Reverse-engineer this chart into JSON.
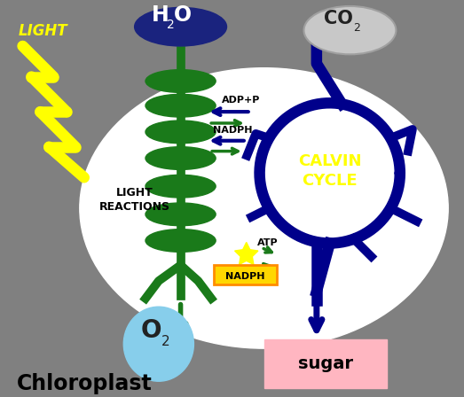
{
  "bg_color": "#808080",
  "white_blob_color": "white",
  "water_ellipse_color": "#1a237e",
  "co2_ellipse_color": "#c0c0c0",
  "o2_ellipse_color": "#87ceeb",
  "light_color": "#ffff00",
  "light_text": "LIGHT",
  "calvin_text": "CALVIN\nCYCLE",
  "calvin_color": "#ffff00",
  "light_reactions_text": "LIGHT\nREACTIONS",
  "chloroplast_text": "Chloroplast",
  "sugar_text": "sugar",
  "sugar_box_color": "#ffb6c1",
  "green_color": "#1a7a1a",
  "dark_blue_color": "#00008B",
  "adpp_text": "ADP+P",
  "nadph_text1": "NADPH",
  "atp_text": "ATP",
  "nadph_text2": "NADPH",
  "nadph_box_color": "#FFD700"
}
